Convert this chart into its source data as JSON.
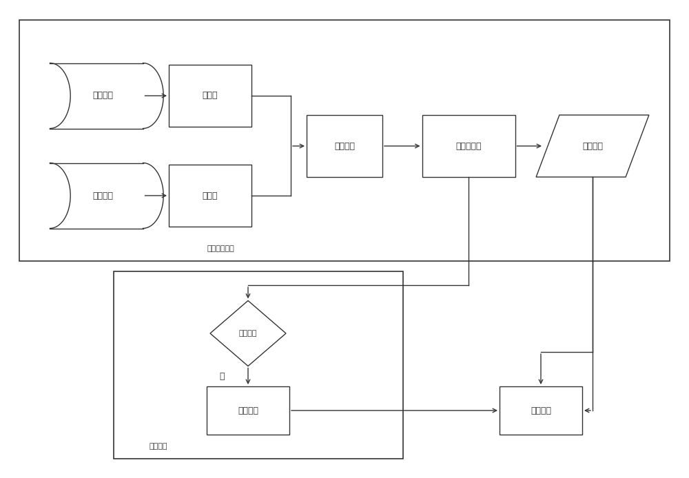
{
  "bg_color": "#ffffff",
  "line_color": "#333333",
  "text_color": "#333333",
  "font_size": 9,
  "label_font_size": 8,
  "top_box_label": "电能计量模块",
  "bottom_box_label": "报警模块",
  "cylinder_voltage_label": "直流电压",
  "cylinder_current_label": "直流电流",
  "rect_fanya_label": "分压器",
  "rect_fanliu_label": "分流器",
  "rect_hebing_label": "合并单元",
  "rect_meter_label": "直流电能表",
  "parallelogram_label": "计量结果",
  "diamond_label": "越限判断",
  "rect_alarm_label": "发出警报",
  "rect_upload_label": "数据上传",
  "shi_label": "是"
}
